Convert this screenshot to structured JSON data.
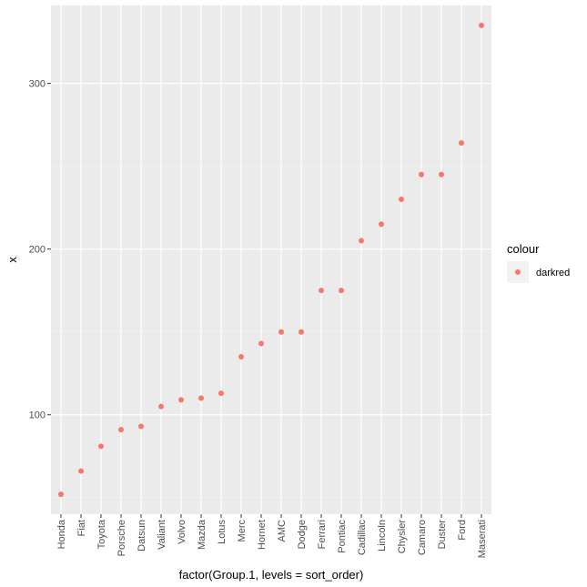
{
  "chart_data": {
    "type": "scatter",
    "categories": [
      "Honda",
      "Fiat",
      "Toyota",
      "Porsche",
      "Datsun",
      "Valiant",
      "Volvo",
      "Mazda",
      "Lotus",
      "Merc",
      "Hornet",
      "AMC",
      "Dodge",
      "Ferrari",
      "Pontiac",
      "Cadillac",
      "Lincoln",
      "Chysler",
      "Camaro",
      "Duster",
      "Ford",
      "Maserati"
    ],
    "series": [
      {
        "name": "darkred",
        "values": [
          52,
          66,
          81,
          91,
          93,
          105,
          109,
          110,
          113,
          135,
          143,
          150,
          150,
          175,
          175,
          205,
          215,
          230,
          245,
          245,
          264,
          335
        ]
      }
    ],
    "xlabel": "factor(Group.1, levels = sort_order)",
    "ylabel": "x",
    "ylim": [
      40,
      347
    ],
    "yticks": [
      100,
      200,
      300
    ],
    "grid": true,
    "legend": {
      "title": "colour",
      "placement": "right"
    },
    "colors": {
      "panel": "#ebebeb",
      "grid_major": "#ffffff",
      "grid_minor": "#f5f5f5",
      "point": "#f8766d"
    }
  }
}
